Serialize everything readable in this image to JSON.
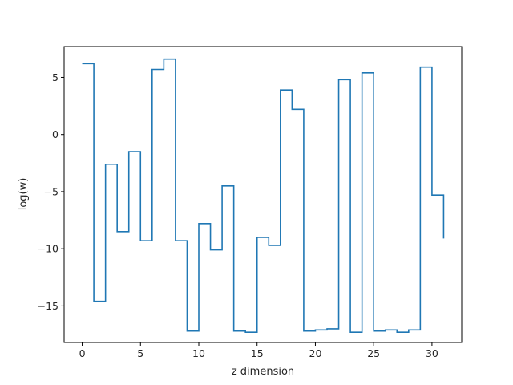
{
  "chart_data": {
    "type": "line",
    "drawstyle": "steps-post",
    "title": "",
    "xlabel": "z dimension",
    "ylabel": "log(w)",
    "xlim": [
      -1.55,
      32.55
    ],
    "ylim": [
      -18.2,
      7.7
    ],
    "xticks": [
      0,
      5,
      10,
      15,
      20,
      25,
      30
    ],
    "yticks": [
      -15,
      -10,
      -5,
      0,
      5
    ],
    "grid": false,
    "legend": "none",
    "line_color": "#1f77b4",
    "x": [
      0,
      1,
      2,
      3,
      4,
      5,
      6,
      7,
      8,
      9,
      10,
      11,
      12,
      13,
      14,
      15,
      16,
      17,
      18,
      19,
      20,
      21,
      22,
      23,
      24,
      25,
      26,
      27,
      28,
      29,
      30,
      31
    ],
    "y": [
      6.2,
      -14.6,
      -2.6,
      -8.5,
      -1.5,
      -9.3,
      5.7,
      6.6,
      -9.3,
      -17.2,
      -7.8,
      -10.1,
      -4.5,
      -17.2,
      -17.3,
      -9.0,
      -9.7,
      3.9,
      2.2,
      -17.2,
      -17.1,
      -17.0,
      4.8,
      -17.3,
      5.4,
      -17.2,
      -17.1,
      -17.3,
      -17.1,
      5.9,
      -5.3,
      -9.1
    ]
  }
}
